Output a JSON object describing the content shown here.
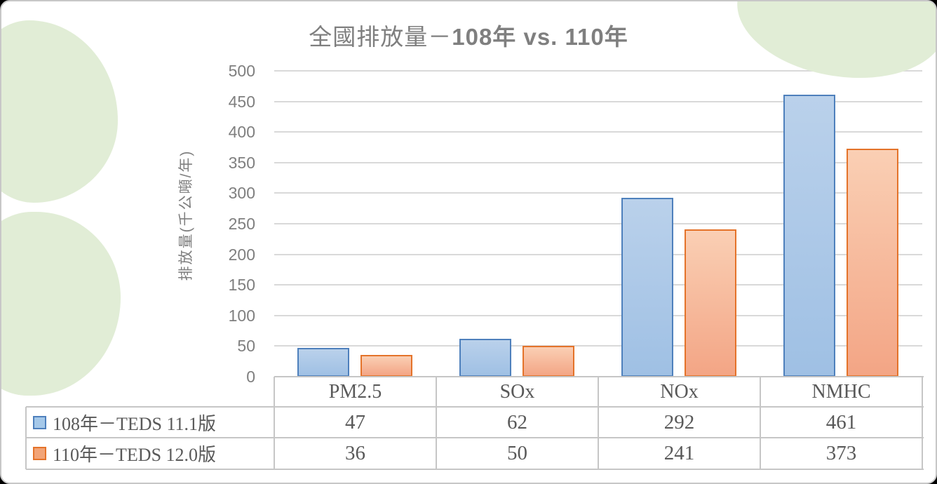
{
  "title": {
    "regular_part": "全國排放量－",
    "bold_part": "108年 vs. 110年"
  },
  "chart_data": {
    "type": "bar",
    "title": "全國排放量－108年 vs. 110年",
    "categories": [
      "PM2.5",
      "SOx",
      "NOx",
      "NMHC"
    ],
    "series": [
      {
        "name": "108年－TEDS 11.1版",
        "values": [
          47,
          62,
          292,
          461
        ],
        "fill_top": "#bad1eb",
        "fill_bottom": "#9fc0e4",
        "border": "#4e80bc",
        "swatch_fill": "#a5c8e9"
      },
      {
        "name": "110年－TEDS 12.0版",
        "values": [
          36,
          50,
          241,
          373
        ],
        "fill_top": "#facfb4",
        "fill_bottom": "#f3a585",
        "border": "#e4732a",
        "swatch_fill": "#f2a477"
      }
    ],
    "xlabel": "",
    "ylabel": "排放量(千公噸/年)",
    "ylim": [
      0,
      500
    ],
    "ytick_step": 50,
    "yticks": [
      0,
      50,
      100,
      150,
      200,
      250,
      300,
      350,
      400,
      450,
      500
    ],
    "grid": true,
    "legend_position": "data-table-left",
    "data_table_shown": true
  },
  "decor": {
    "blob_color": "#e1edd6",
    "gridline_color": "#d9d9d9",
    "table_border_color": "#c6c6c6",
    "text_gray": "#7f7f7f",
    "table_text_gray": "#595959"
  }
}
